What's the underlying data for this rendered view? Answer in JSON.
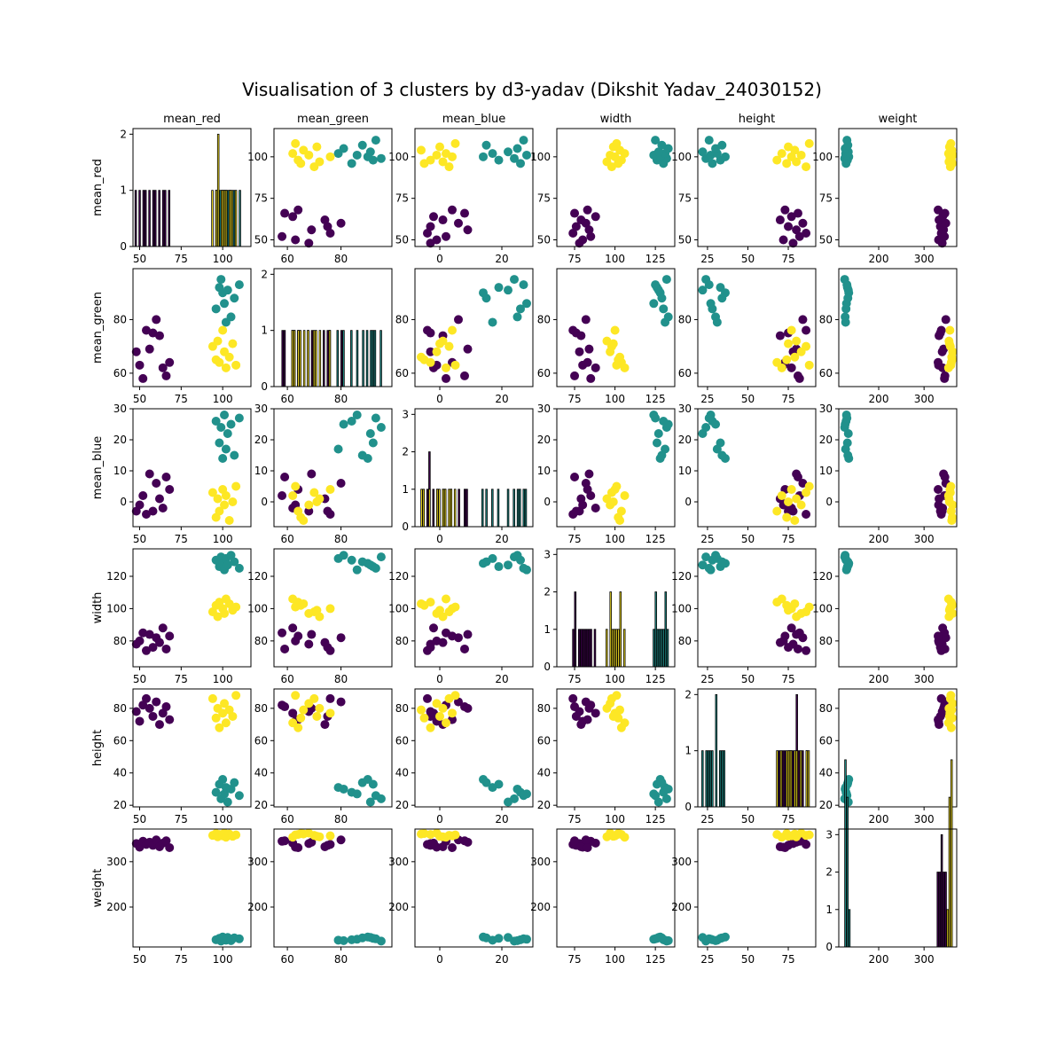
{
  "title": "Visualisation of 3 clusters by d3-yadav (Dikshit Yadav_24030152)",
  "colors": {
    "cluster0": "#440154",
    "cluster1": "#21918c",
    "cluster2": "#fde725",
    "frame": "#000000",
    "background": "#ffffff"
  },
  "chart_data": {
    "type": "scatter",
    "variables": [
      "mean_red",
      "mean_green",
      "mean_blue",
      "width",
      "height",
      "weight"
    ],
    "clusters": [
      {
        "id": 0,
        "color": "#440154"
      },
      {
        "id": 1,
        "color": "#21918c"
      },
      {
        "id": 2,
        "color": "#fde725"
      }
    ],
    "ranges": {
      "mean_red": [
        46,
        117
      ],
      "mean_green": [
        55,
        99
      ],
      "mean_blue": [
        -8,
        30
      ],
      "width": [
        64,
        137
      ],
      "height": [
        19,
        92
      ],
      "weight": [
        112,
        372
      ]
    },
    "ticks": {
      "mean_red": [
        50,
        75,
        100
      ],
      "mean_green": [
        60,
        80
      ],
      "mean_blue": [
        0,
        10,
        20,
        30
      ],
      "width": [
        80,
        100,
        120
      ],
      "height": [
        20,
        40,
        60,
        80
      ],
      "weight": [
        200,
        300
      ]
    },
    "ticks_x": {
      "mean_red": [
        50,
        75,
        100
      ],
      "mean_green": [
        60,
        80
      ],
      "mean_blue": [
        0,
        20
      ],
      "width": [
        75,
        100,
        125
      ],
      "height": [
        25,
        50,
        75
      ],
      "weight": [
        200,
        300
      ]
    },
    "hist_ylim": [
      0,
      2.1
    ],
    "hist_ylim_alt": [
      0,
      3.15
    ],
    "hist_ticks": [
      0,
      1,
      2
    ],
    "hist_ticks_alt": [
      0,
      1,
      2,
      3
    ],
    "points": [
      {
        "cluster": 0,
        "mean_red": 48,
        "mean_green": 68,
        "mean_blue": -3,
        "width": 78,
        "height": 78,
        "weight": 340
      },
      {
        "cluster": 0,
        "mean_red": 50,
        "mean_green": 63,
        "mean_blue": -1,
        "width": 80,
        "height": 72,
        "weight": 332
      },
      {
        "cluster": 0,
        "mean_red": 52,
        "mean_green": 58,
        "mean_blue": 2,
        "width": 85,
        "height": 82,
        "weight": 345
      },
      {
        "cluster": 0,
        "mean_red": 54,
        "mean_green": 76,
        "mean_blue": -4,
        "width": 74,
        "height": 86,
        "weight": 338
      },
      {
        "cluster": 0,
        "mean_red": 56,
        "mean_green": 69,
        "mean_blue": 9,
        "width": 84,
        "height": 80,
        "weight": 343
      },
      {
        "cluster": 0,
        "mean_red": 58,
        "mean_green": 75,
        "mean_blue": -3,
        "width": 76,
        "height": 75,
        "weight": 336
      },
      {
        "cluster": 0,
        "mean_red": 60,
        "mean_green": 80,
        "mean_blue": 6,
        "width": 82,
        "height": 84,
        "weight": 348
      },
      {
        "cluster": 0,
        "mean_red": 62,
        "mean_green": 74,
        "mean_blue": 1,
        "width": 79,
        "height": 70,
        "weight": 333
      },
      {
        "cluster": 0,
        "mean_red": 64,
        "mean_green": 62,
        "mean_blue": -2,
        "width": 88,
        "height": 77,
        "weight": 341
      },
      {
        "cluster": 0,
        "mean_red": 66,
        "mean_green": 59,
        "mean_blue": 8,
        "width": 75,
        "height": 81,
        "weight": 346
      },
      {
        "cluster": 0,
        "mean_red": 68,
        "mean_green": 64,
        "mean_blue": 4,
        "width": 83,
        "height": 73,
        "weight": 331
      },
      {
        "cluster": 1,
        "mean_red": 96,
        "mean_green": 84,
        "mean_blue": 26,
        "width": 130,
        "height": 28,
        "weight": 128
      },
      {
        "cluster": 1,
        "mean_red": 98,
        "mean_green": 92,
        "mean_blue": 19,
        "width": 126,
        "height": 33,
        "weight": 131
      },
      {
        "cluster": 1,
        "mean_red": 99,
        "mean_green": 95,
        "mean_blue": 24,
        "width": 132,
        "height": 24,
        "weight": 125
      },
      {
        "cluster": 1,
        "mean_red": 100,
        "mean_green": 90,
        "mean_blue": 14,
        "width": 128,
        "height": 36,
        "weight": 134
      },
      {
        "cluster": 1,
        "mean_red": 101,
        "mean_green": 86,
        "mean_blue": 28,
        "width": 124,
        "height": 27,
        "weight": 129
      },
      {
        "cluster": 1,
        "mean_red": 102,
        "mean_green": 79,
        "mean_blue": 17,
        "width": 131,
        "height": 31,
        "weight": 127
      },
      {
        "cluster": 1,
        "mean_red": 103,
        "mean_green": 91,
        "mean_blue": 22,
        "width": 127,
        "height": 22,
        "weight": 133
      },
      {
        "cluster": 1,
        "mean_red": 105,
        "mean_green": 81,
        "mean_blue": 25,
        "width": 133,
        "height": 30,
        "weight": 126
      },
      {
        "cluster": 1,
        "mean_red": 107,
        "mean_green": 88,
        "mean_blue": 15,
        "width": 129,
        "height": 34,
        "weight": 132
      },
      {
        "cluster": 1,
        "mean_red": 110,
        "mean_green": 93,
        "mean_blue": 27,
        "width": 125,
        "height": 26,
        "weight": 130
      },
      {
        "cluster": 2,
        "mean_red": 94,
        "mean_green": 70,
        "mean_blue": 3,
        "width": 98,
        "height": 86,
        "weight": 358
      },
      {
        "cluster": 2,
        "mean_red": 96,
        "mean_green": 65,
        "mean_blue": -5,
        "width": 102,
        "height": 74,
        "weight": 362
      },
      {
        "cluster": 2,
        "mean_red": 97,
        "mean_green": 72,
        "mean_blue": 1,
        "width": 95,
        "height": 80,
        "weight": 355
      },
      {
        "cluster": 2,
        "mean_red": 98,
        "mean_green": 64,
        "mean_blue": -3,
        "width": 104,
        "height": 68,
        "weight": 360
      },
      {
        "cluster": 2,
        "mean_red": 100,
        "mean_green": 76,
        "mean_blue": 4,
        "width": 100,
        "height": 77,
        "weight": 357
      },
      {
        "cluster": 2,
        "mean_red": 101,
        "mean_green": 68,
        "mean_blue": -1,
        "width": 97,
        "height": 83,
        "weight": 363
      },
      {
        "cluster": 2,
        "mean_red": 102,
        "mean_green": 62,
        "mean_blue": 2,
        "width": 106,
        "height": 71,
        "weight": 354
      },
      {
        "cluster": 2,
        "mean_red": 104,
        "mean_green": 66,
        "mean_blue": -6,
        "width": 103,
        "height": 79,
        "weight": 361
      },
      {
        "cluster": 2,
        "mean_red": 106,
        "mean_green": 71,
        "mean_blue": 0,
        "width": 99,
        "height": 75,
        "weight": 356
      },
      {
        "cluster": 2,
        "mean_red": 108,
        "mean_green": 63,
        "mean_blue": 5,
        "width": 101,
        "height": 88,
        "weight": 359
      }
    ]
  }
}
